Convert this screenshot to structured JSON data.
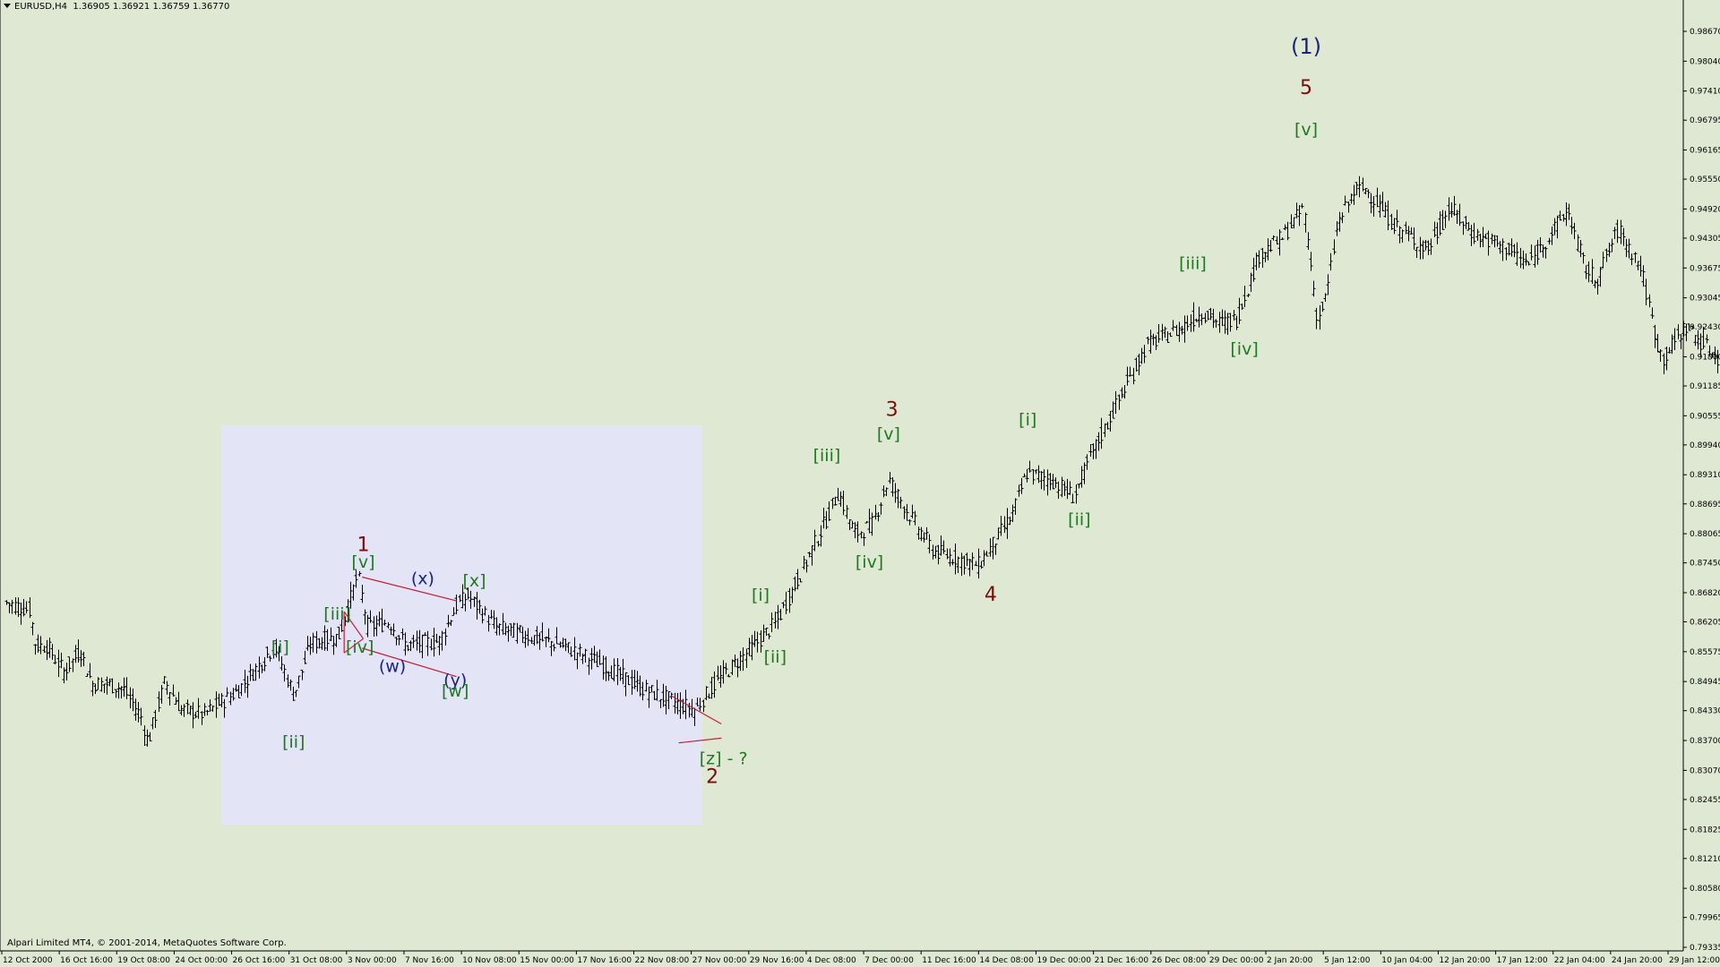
{
  "header": {
    "symbol": "EURUSD,H4",
    "ohlc": "1.36905 1.36921 1.36759 1.36770"
  },
  "footer": {
    "copyright": "Alpari Limited MT4, © 2001-2014, MetaQuotes Software Corp."
  },
  "colors": {
    "background": "#dfe8d2",
    "highlight": "#e3e4f6",
    "bars": "#000000",
    "label_green": "#1e7a1e",
    "label_darkred": "#7a0c0c",
    "label_navy": "#1a237e",
    "trendline": "#c0203a"
  },
  "chart_data": {
    "type": "ohlc",
    "grid": false,
    "y_ticks": [
      "0.98670",
      "0.98040",
      "0.97410",
      "0.96795",
      "0.96165",
      "0.95550",
      "0.94920",
      "0.94305",
      "0.93675",
      "0.93045",
      "0.92430",
      "0.91800",
      "0.91185",
      "0.90555",
      "0.89940",
      "0.89310",
      "0.88695",
      "0.88065",
      "0.87450",
      "0.86820",
      "0.86205",
      "0.85575",
      "0.84945",
      "0.84330",
      "0.83700",
      "0.83070",
      "0.82455",
      "0.81825",
      "0.81210",
      "0.80580",
      "0.79965",
      "0.79335"
    ],
    "ylim": [
      0.79335,
      0.9867
    ],
    "x_ticks": [
      "12 Oct 2000",
      "16 Oct 16:00",
      "19 Oct 08:00",
      "24 Oct 00:00",
      "26 Oct 16:00",
      "31 Oct 08:00",
      "3 Nov 00:00",
      "7 Nov 16:00",
      "10 Nov 08:00",
      "15 Nov 00:00",
      "17 Nov 16:00",
      "22 Nov 08:00",
      "27 Nov 00:00",
      "29 Nov 16:00",
      "4 Dec 08:00",
      "7 Dec 00:00",
      "11 Dec 16:00",
      "14 Dec 08:00",
      "19 Dec 00:00",
      "21 Dec 16:00",
      "26 Dec 08:00",
      "29 Dec 00:00",
      "2 Jan 20:00",
      "5 Jan 12:00",
      "10 Jan 04:00",
      "12 Jan 20:00",
      "17 Jan 12:00",
      "22 Jan 04:00",
      "24 Jan 20:00",
      "29 Jan 12:00"
    ],
    "price_path": [
      [
        0,
        0.8665
      ],
      [
        0.025,
        0.8645
      ],
      [
        0.03,
        0.857
      ],
      [
        0.04,
        0.857
      ],
      [
        0.055,
        0.8515
      ],
      [
        0.07,
        0.856
      ],
      [
        0.08,
        0.849
      ],
      [
        0.092,
        0.849
      ],
      [
        0.108,
        0.848
      ],
      [
        0.124,
        0.842
      ],
      [
        0.13,
        0.8365
      ],
      [
        0.145,
        0.8495
      ],
      [
        0.16,
        0.8435
      ],
      [
        0.18,
        0.8425
      ],
      [
        0.21,
        0.8475
      ],
      [
        0.243,
        0.857
      ],
      [
        0.26,
        0.8465
      ],
      [
        0.275,
        0.8575
      ],
      [
        0.3,
        0.859
      ],
      [
        0.317,
        0.872
      ],
      [
        0.326,
        0.861
      ],
      [
        0.345,
        0.862
      ],
      [
        0.36,
        0.857
      ],
      [
        0.39,
        0.858
      ],
      [
        0.405,
        0.8655
      ],
      [
        0.415,
        0.8675
      ],
      [
        0.44,
        0.861
      ],
      [
        0.47,
        0.859
      ],
      [
        0.5,
        0.857
      ],
      [
        0.535,
        0.853
      ],
      [
        0.57,
        0.848
      ],
      [
        0.6,
        0.845
      ],
      [
        0.618,
        0.8435
      ],
      [
        0.625,
        0.846
      ],
      [
        0.641,
        0.8505
      ],
      [
        0.67,
        0.857
      ],
      [
        0.69,
        0.862
      ],
      [
        0.71,
        0.8715
      ],
      [
        0.735,
        0.884
      ],
      [
        0.745,
        0.8895
      ],
      [
        0.76,
        0.8805
      ],
      [
        0.775,
        0.8825
      ],
      [
        0.79,
        0.892
      ],
      [
        0.81,
        0.884
      ],
      [
        0.83,
        0.877
      ],
      [
        0.87,
        0.874
      ],
      [
        0.9,
        0.8845
      ],
      [
        0.913,
        0.8935
      ],
      [
        0.935,
        0.892
      ],
      [
        0.955,
        0.8885
      ],
      [
        0.97,
        0.897
      ],
      [
        0.99,
        0.9065
      ],
      [
        1.02,
        0.9205
      ],
      [
        1.05,
        0.924
      ],
      [
        1.07,
        0.9275
      ],
      [
        1.085,
        0.925
      ],
      [
        1.1,
        0.926
      ],
      [
        1.12,
        0.9395
      ],
      [
        1.14,
        0.943
      ],
      [
        1.16,
        0.9495
      ],
      [
        1.172,
        0.9255
      ],
      [
        1.18,
        0.931
      ],
      [
        1.19,
        0.946
      ],
      [
        1.205,
        0.953
      ],
      [
        1.215,
        0.9535
      ],
      [
        1.24,
        0.946
      ],
      [
        1.27,
        0.9405
      ],
      [
        1.29,
        0.9495
      ],
      [
        1.31,
        0.944
      ],
      [
        1.34,
        0.941
      ],
      [
        1.36,
        0.9375
      ],
      [
        1.38,
        0.944
      ],
      [
        1.395,
        0.949
      ],
      [
        1.41,
        0.937
      ],
      [
        1.42,
        0.934
      ],
      [
        1.44,
        0.945
      ],
      [
        1.46,
        0.937
      ],
      [
        1.475,
        0.9205
      ],
      [
        1.48,
        0.9175
      ],
      [
        1.5,
        0.9245
      ],
      [
        1.51,
        0.922
      ],
      [
        1.53,
        0.9175
      ]
    ],
    "annotations": [
      {
        "text": "(1)",
        "x": 1.162,
        "y": 0.982,
        "color": "navy"
      },
      {
        "text": "5",
        "x": 1.162,
        "y": 0.9735,
        "color": "darkred"
      },
      {
        "text": "[v]",
        "x": 1.162,
        "y": 0.9648,
        "color": "green"
      },
      {
        "text": "[iii]",
        "x": 1.061,
        "y": 0.9365,
        "color": "green"
      },
      {
        "text": "[iv]",
        "x": 1.107,
        "y": 0.9185,
        "color": "green"
      },
      {
        "text": "[i]",
        "x": 0.914,
        "y": 0.9035,
        "color": "green"
      },
      {
        "text": "[ii]",
        "x": 0.96,
        "y": 0.8825,
        "color": "green"
      },
      {
        "text": "3",
        "x": 0.793,
        "y": 0.9055,
        "color": "darkred"
      },
      {
        "text": "[v]",
        "x": 0.79,
        "y": 0.9005,
        "color": "green"
      },
      {
        "text": "[iii]",
        "x": 0.735,
        "y": 0.896,
        "color": "green"
      },
      {
        "text": "[iv]",
        "x": 0.773,
        "y": 0.8735,
        "color": "green"
      },
      {
        "text": "4",
        "x": 0.881,
        "y": 0.8665,
        "color": "darkred"
      },
      {
        "text": "[i]",
        "x": 0.676,
        "y": 0.8665,
        "color": "green"
      },
      {
        "text": "[ii]",
        "x": 0.689,
        "y": 0.8535,
        "color": "green"
      },
      {
        "text": "[z] - ?",
        "x": 0.643,
        "y": 0.832,
        "color": "green"
      },
      {
        "text": "2",
        "x": 0.633,
        "y": 0.828,
        "color": "darkred"
      },
      {
        "text": "1",
        "x": 0.322,
        "y": 0.877,
        "color": "darkred"
      },
      {
        "text": "[v]",
        "x": 0.322,
        "y": 0.8735,
        "color": "green"
      },
      {
        "text": "[x]",
        "x": 0.421,
        "y": 0.8695,
        "color": "green"
      },
      {
        "text": "(x)",
        "x": 0.375,
        "y": 0.87,
        "color": "navy"
      },
      {
        "text": "[iii]",
        "x": 0.299,
        "y": 0.8625,
        "color": "green"
      },
      {
        "text": "[iv]",
        "x": 0.319,
        "y": 0.8555,
        "color": "green"
      },
      {
        "text": "(w)",
        "x": 0.348,
        "y": 0.8515,
        "color": "navy"
      },
      {
        "text": "(y)",
        "x": 0.404,
        "y": 0.8485,
        "color": "navy"
      },
      {
        "text": "[w]",
        "x": 0.404,
        "y": 0.8463,
        "color": "green"
      },
      {
        "text": "[i]",
        "x": 0.248,
        "y": 0.8555,
        "color": "green"
      },
      {
        "text": "[ii]",
        "x": 0.26,
        "y": 0.8355,
        "color": "green"
      }
    ]
  }
}
